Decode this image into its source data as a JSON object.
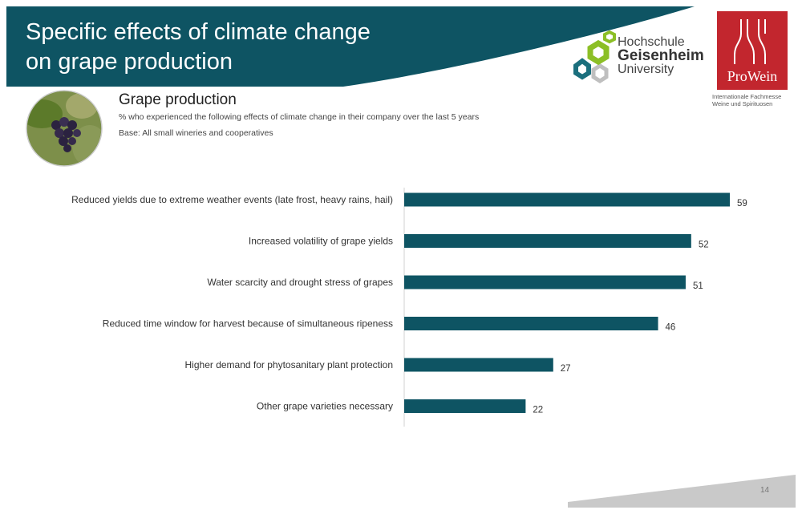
{
  "header": {
    "title_line1": "Specific effects of climate change",
    "title_line2": "on grape production"
  },
  "logos": {
    "university_line1": "Hochschule",
    "university_line2": "Geisenheim",
    "university_line3": "University",
    "prowein_name": "ProWein",
    "prowein_sub1": "Internationale Fachmesse",
    "prowein_sub2": "Weine und Spirituosen"
  },
  "section": {
    "title": "Grape production",
    "subtitle": "% who experienced  the following effects of climate change in their company over the last 5 years",
    "base": "Base: All small wineries and cooperatives"
  },
  "page_number": "14",
  "colors": {
    "banner": "#0e5463",
    "bar": "#0e5463",
    "prowein": "#c2262e",
    "logo_green": "#8cbf26",
    "logo_teal": "#1b6f7d"
  },
  "chart_data": {
    "type": "bar",
    "orientation": "horizontal",
    "categories": [
      "Reduced yields due to extreme weather events (late frost, heavy rains, hail)",
      "Increased volatility of grape yields",
      "Water scarcity and drought stress of grapes",
      "Reduced time window for harvest because of simultaneous ripeness",
      "Higher demand for phytosanitary plant protection",
      "Other grape varieties necessary"
    ],
    "values": [
      59,
      52,
      51,
      46,
      27,
      22
    ],
    "value_labels": [
      "59",
      "52",
      "51",
      "46",
      "27",
      "22"
    ],
    "xlim": [
      0,
      60
    ],
    "grid": false
  }
}
